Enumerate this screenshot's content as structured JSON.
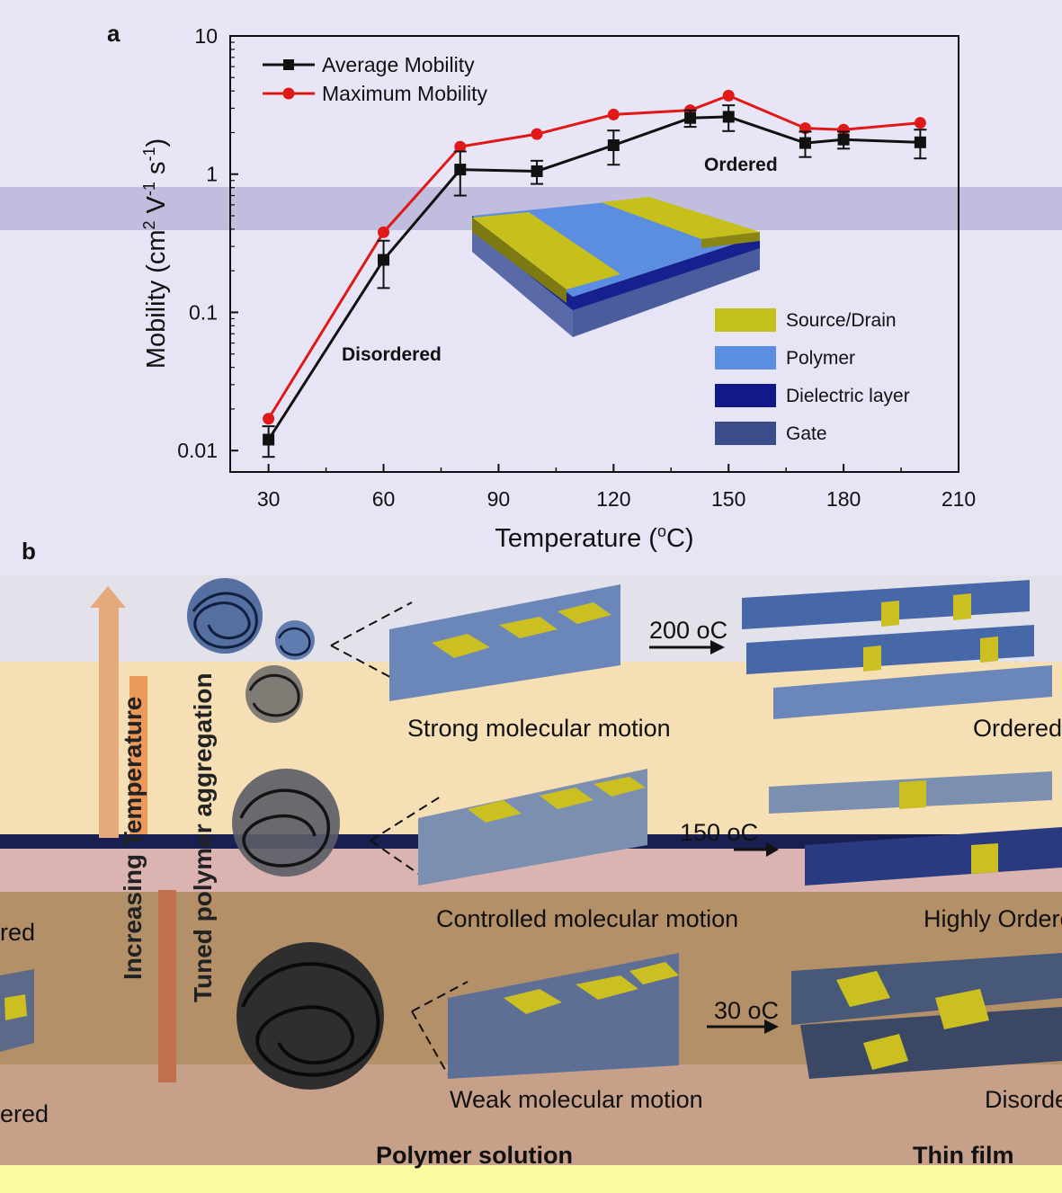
{
  "panel_a_letter": "a",
  "panel_b_letter": "b",
  "chart_data": {
    "type": "line",
    "xlabel": "Temperature (oC)",
    "ylabel": "Mobility (cm2 V-1 s-1)",
    "xlim": [
      20,
      210
    ],
    "ylim": [
      0.007,
      10
    ],
    "y_scale": "log",
    "x_ticks": [
      30,
      60,
      90,
      120,
      150,
      180,
      210
    ],
    "y_ticks": [
      0.01,
      0.1,
      1,
      10
    ],
    "y_tick_labels": [
      "0.01",
      "0.1",
      "1",
      "10"
    ],
    "legend_placement": "top-left",
    "x": [
      30,
      60,
      80,
      100,
      120,
      140,
      150,
      170,
      180,
      200
    ],
    "series": [
      {
        "name": "Average Mobility",
        "marker": "square",
        "color": "#111111",
        "values": [
          0.012,
          0.24,
          1.08,
          1.05,
          1.62,
          2.55,
          2.6,
          1.68,
          1.78,
          1.7
        ],
        "error": [
          0.003,
          0.09,
          0.38,
          0.2,
          0.45,
          0.35,
          0.55,
          0.35,
          0.25,
          0.4
        ]
      },
      {
        "name": "Maximum Mobility",
        "marker": "circle",
        "color": "#e01818",
        "values": [
          0.017,
          0.38,
          1.58,
          1.95,
          2.7,
          2.9,
          3.7,
          2.15,
          2.1,
          2.35
        ]
      }
    ],
    "annotations": [
      "Disordered",
      "Ordered"
    ]
  },
  "inset": {
    "legend": [
      {
        "label": "Source/Drain",
        "color": "#c2c21a"
      },
      {
        "label": "Polymer",
        "color": "#5b8ee0"
      },
      {
        "label": "Dielectric layer",
        "color": "#12188a"
      },
      {
        "label": "Gate",
        "color": "#3a4c8a"
      }
    ]
  },
  "scheme": {
    "rows": [
      {
        "temperature": "200 oC",
        "motion": "Strong molecular motion",
        "state": "Ordered"
      },
      {
        "temperature": "150 oC",
        "motion": "Controlled molecular motion",
        "state": "Highly Ordered"
      },
      {
        "temperature": "30 oC",
        "motion": "Weak molecular motion",
        "state": "Disordered"
      }
    ],
    "left_fragments": [
      "red",
      "ered"
    ],
    "vertical_labels": {
      "increasing_temperature": "Increasing Temperature",
      "tuned_aggregation": "Tuned polymer aggregation"
    },
    "footer": {
      "solution": "Polymer solution",
      "film": "Thin film"
    }
  },
  "colors": {
    "band_top": "#e4e2ef",
    "band_mid": "#f6dfb6",
    "band_pink": "#ddb6b2",
    "band_brown": "#b49168",
    "band_bottom": "#c9a08a",
    "band_yellow": "#fbfaa0",
    "slab_blue": "#6b86b8",
    "slab_yellow": "#cbbf22"
  }
}
